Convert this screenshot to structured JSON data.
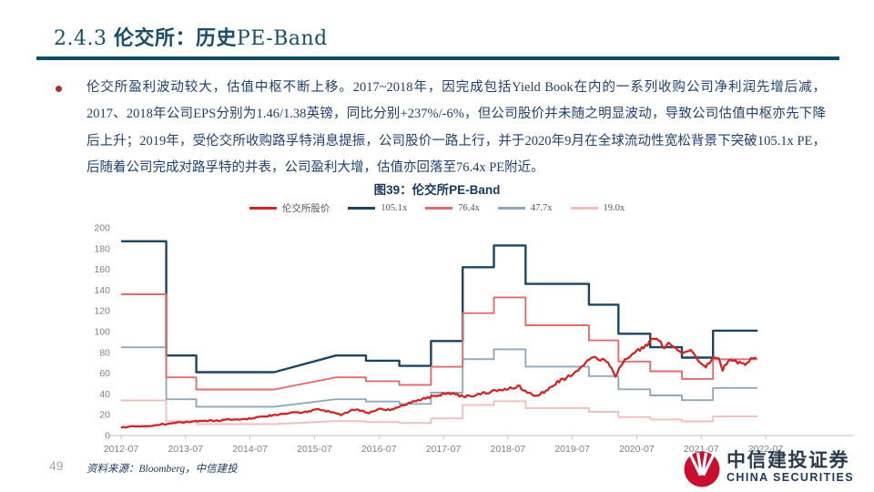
{
  "slide": {
    "title_num": "2.4.3 ",
    "title_cn": "伦交所：历史",
    "title_en": "PE-Band",
    "body_paragraph": "伦交所盈利波动较大，估值中枢不断上移。2017~2018年，因完成包括Yield Book在内的一系列收购公司净利润先增后减，2017、2018年公司EPS分别为1.46/1.38英镑，同比分别+237%/-6%，但公司股价并未随之明显波动，导致公司估值中枢亦先下降后上升；2019年，受伦交所收购路孚特消息提振，公司股价一路上行，并于2020年9月在全球流动性宽松背景下突破105.1x PE，后随着公司完成对路孚特的并表，公司盈利大增，估值亦回落至76.4x PE附近。",
    "page_number": "49",
    "source_note": "资料来源：Bloomberg，中信建投",
    "logo_cn": "中信建投证券",
    "logo_en": "CHINA SECURITIES",
    "colors": {
      "title": "#184f68",
      "rule": "#0e4b63",
      "body_text": "#1e3f6f",
      "axis_label": "#808080",
      "axis_line": "#c0c0c0"
    }
  },
  "chart_data": {
    "type": "line",
    "title": "图39：伦交所PE-Band",
    "xlabel": "",
    "ylabel": "",
    "grid": false,
    "legend_position": "top",
    "ylim": [
      0,
      200
    ],
    "y_ticks": [
      0,
      20,
      40,
      60,
      80,
      100,
      120,
      140,
      160,
      180,
      200
    ],
    "x_ticks": [
      "2012-07",
      "2013-07",
      "2014-07",
      "2015-07",
      "2016-07",
      "2017-07",
      "2018-07",
      "2019-07",
      "2020-07",
      "2021-07",
      "2022-07"
    ],
    "x_months_range": [
      0,
      120
    ],
    "legend": [
      {
        "label": "伦交所股价",
        "color": "#d02626"
      },
      {
        "label": "105.1x",
        "color": "#1b4560"
      },
      {
        "label": "76.4x",
        "color": "#e06c6c"
      },
      {
        "label": "47.7x",
        "color": "#91a8ba"
      },
      {
        "label": "19.0x",
        "color": "#f2bdbd"
      }
    ],
    "series": [
      {
        "name": "105.1x",
        "color": "#1b4560",
        "width": 2.4,
        "noisy": false,
        "points": [
          [
            0,
            187
          ],
          [
            8.4,
            187
          ],
          [
            8.4,
            77
          ],
          [
            14,
            77
          ],
          [
            14,
            61
          ],
          [
            28.5,
            61
          ],
          [
            40,
            77
          ],
          [
            45.6,
            77
          ],
          [
            45.6,
            72
          ],
          [
            51.8,
            72
          ],
          [
            51.8,
            67
          ],
          [
            57.7,
            67
          ],
          [
            57.7,
            91
          ],
          [
            63.6,
            91
          ],
          [
            63.6,
            162
          ],
          [
            69.4,
            162
          ],
          [
            69.4,
            183
          ],
          [
            75.3,
            183
          ],
          [
            75.3,
            146
          ],
          [
            87.1,
            146
          ],
          [
            87.1,
            126
          ],
          [
            92.6,
            126
          ],
          [
            92.6,
            98
          ],
          [
            98.5,
            98
          ],
          [
            98.5,
            85
          ],
          [
            104.4,
            85
          ],
          [
            104.4,
            75
          ],
          [
            110.2,
            75
          ],
          [
            110.2,
            101
          ],
          [
            118.5,
            101
          ]
        ]
      },
      {
        "name": "47.7x",
        "color": "#91a8ba",
        "width": 1.9,
        "noisy": false,
        "points": [
          [
            0,
            84.9
          ],
          [
            8.4,
            84.9
          ],
          [
            8.4,
            34.9
          ],
          [
            14,
            34.9
          ],
          [
            14,
            27.7
          ],
          [
            28.5,
            27.7
          ],
          [
            40,
            34.9
          ],
          [
            45.6,
            34.9
          ],
          [
            45.6,
            32.7
          ],
          [
            51.8,
            32.7
          ],
          [
            51.8,
            30.4
          ],
          [
            57.7,
            30.4
          ],
          [
            57.7,
            41.3
          ],
          [
            63.6,
            41.3
          ],
          [
            63.6,
            73.5
          ],
          [
            69.4,
            73.5
          ],
          [
            69.4,
            83
          ],
          [
            75.3,
            83
          ],
          [
            75.3,
            66.3
          ],
          [
            87.1,
            66.3
          ],
          [
            87.1,
            57.2
          ],
          [
            92.6,
            57.2
          ],
          [
            92.6,
            44.5
          ],
          [
            98.5,
            44.5
          ],
          [
            98.5,
            38.6
          ],
          [
            104.4,
            38.6
          ],
          [
            104.4,
            34
          ],
          [
            110.2,
            34
          ],
          [
            110.2,
            45.8
          ],
          [
            118.5,
            45.8
          ]
        ]
      },
      {
        "name": "76.4x",
        "color": "#e06c6c",
        "width": 1.9,
        "noisy": false,
        "points": [
          [
            0,
            136
          ],
          [
            8.4,
            136
          ],
          [
            8.4,
            56
          ],
          [
            14,
            56
          ],
          [
            14,
            44.3
          ],
          [
            28.5,
            44.3
          ],
          [
            40,
            56
          ],
          [
            45.6,
            56
          ],
          [
            45.6,
            52.3
          ],
          [
            51.8,
            52.3
          ],
          [
            51.8,
            48.7
          ],
          [
            57.7,
            48.7
          ],
          [
            57.7,
            66.1
          ],
          [
            63.6,
            66.1
          ],
          [
            63.6,
            117.8
          ],
          [
            69.4,
            117.8
          ],
          [
            69.4,
            133
          ],
          [
            75.3,
            133
          ],
          [
            75.3,
            106.1
          ],
          [
            87.1,
            106.1
          ],
          [
            87.1,
            91.6
          ],
          [
            92.6,
            91.6
          ],
          [
            92.6,
            71.2
          ],
          [
            98.5,
            71.2
          ],
          [
            98.5,
            61.8
          ],
          [
            104.4,
            61.8
          ],
          [
            104.4,
            54.5
          ],
          [
            110.2,
            54.5
          ],
          [
            110.2,
            73.4
          ],
          [
            118.5,
            73.4
          ]
        ]
      },
      {
        "name": "19.0x",
        "color": "#f2bdbd",
        "width": 1.9,
        "noisy": false,
        "points": [
          [
            0,
            33.8
          ],
          [
            8.4,
            33.8
          ],
          [
            8.4,
            13.9
          ],
          [
            14,
            13.9
          ],
          [
            14,
            11
          ],
          [
            28.5,
            11
          ],
          [
            40,
            13.9
          ],
          [
            45.6,
            13.9
          ],
          [
            45.6,
            13
          ],
          [
            51.8,
            13
          ],
          [
            51.8,
            12.1
          ],
          [
            57.7,
            12.1
          ],
          [
            57.7,
            16.5
          ],
          [
            63.6,
            16.5
          ],
          [
            63.6,
            29.3
          ],
          [
            69.4,
            29.3
          ],
          [
            69.4,
            33.1
          ],
          [
            75.3,
            33.1
          ],
          [
            75.3,
            26.4
          ],
          [
            87.1,
            26.4
          ],
          [
            87.1,
            22.8
          ],
          [
            92.6,
            22.8
          ],
          [
            92.6,
            17.7
          ],
          [
            98.5,
            17.7
          ],
          [
            98.5,
            15.4
          ],
          [
            104.4,
            15.4
          ],
          [
            104.4,
            13.6
          ],
          [
            110.2,
            13.6
          ],
          [
            110.2,
            18.3
          ],
          [
            118.5,
            18.3
          ]
        ]
      },
      {
        "name": "伦交所股价",
        "color": "#d02626",
        "width": 2.3,
        "noisy": true,
        "points": [
          [
            0,
            8
          ],
          [
            2,
            8.6
          ],
          [
            4,
            9
          ],
          [
            6,
            9.8
          ],
          [
            8,
            11
          ],
          [
            10,
            12.3
          ],
          [
            12,
            13
          ],
          [
            14,
            13.8
          ],
          [
            16,
            14.2
          ],
          [
            18,
            14.3
          ],
          [
            20,
            15.3
          ],
          [
            22,
            15.5
          ],
          [
            24,
            16.2
          ],
          [
            26,
            17.8
          ],
          [
            28,
            19.2
          ],
          [
            30,
            20.5
          ],
          [
            32,
            21.8
          ],
          [
            34,
            22
          ],
          [
            36,
            25
          ],
          [
            37,
            25.5
          ],
          [
            38,
            24
          ],
          [
            40,
            21.5
          ],
          [
            41,
            20
          ],
          [
            42,
            22
          ],
          [
            43,
            24.5
          ],
          [
            44,
            24.8
          ],
          [
            46,
            21.7
          ],
          [
            48,
            26
          ],
          [
            50,
            24.6
          ],
          [
            52,
            28
          ],
          [
            54,
            32
          ],
          [
            56,
            34.8
          ],
          [
            58,
            38
          ],
          [
            60,
            40
          ],
          [
            61,
            40.6
          ],
          [
            63,
            38.5
          ],
          [
            64,
            37.7
          ],
          [
            66,
            39.1
          ],
          [
            68,
            41.5
          ],
          [
            70,
            43
          ],
          [
            72,
            44.5
          ],
          [
            74,
            47.8
          ],
          [
            75,
            44
          ],
          [
            77,
            37.7
          ],
          [
            78,
            40
          ],
          [
            80,
            46
          ],
          [
            81,
            50.7
          ],
          [
            83,
            56
          ],
          [
            84,
            59.4
          ],
          [
            86,
            67
          ],
          [
            87,
            74
          ],
          [
            88,
            76
          ],
          [
            89,
            71
          ],
          [
            90,
            74
          ],
          [
            91,
            68
          ],
          [
            92,
            55
          ],
          [
            93,
            68
          ],
          [
            94,
            75
          ],
          [
            95,
            78
          ],
          [
            96,
            82
          ],
          [
            97,
            84
          ],
          [
            98,
            88
          ],
          [
            99,
            95
          ],
          [
            100,
            92
          ],
          [
            101,
            85
          ],
          [
            102,
            90
          ],
          [
            103,
            86
          ],
          [
            104,
            82
          ],
          [
            105,
            79
          ],
          [
            106,
            82
          ],
          [
            107,
            76
          ],
          [
            108,
            69
          ],
          [
            109,
            67
          ],
          [
            110,
            74
          ],
          [
            111,
            76
          ],
          [
            112,
            64
          ],
          [
            113,
            71
          ],
          [
            114,
            74
          ],
          [
            115,
            70
          ],
          [
            116,
            68
          ],
          [
            117,
            73
          ],
          [
            118,
            75
          ],
          [
            118.5,
            77
          ]
        ]
      }
    ]
  }
}
